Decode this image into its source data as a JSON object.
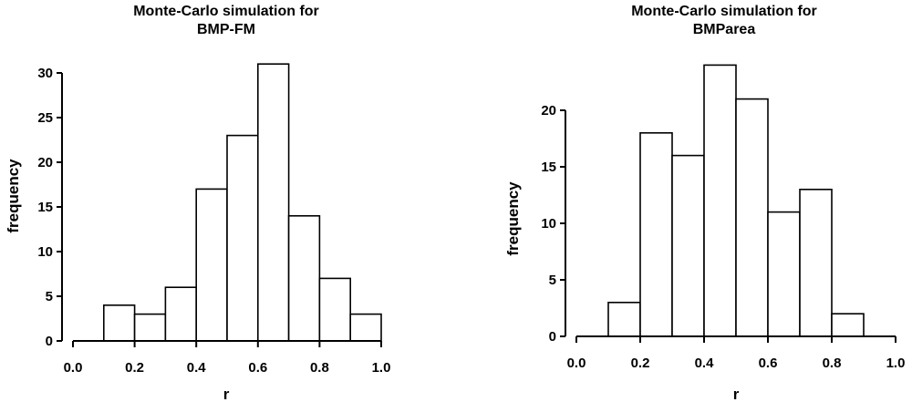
{
  "chart_data": [
    {
      "type": "bar",
      "title_line1": "Monte-Carlo simulation for",
      "title_line2": "BMP-FM",
      "xlabel": "r",
      "ylabel": "frequency",
      "xlim": [
        0.0,
        1.0
      ],
      "ylim": [
        0,
        32
      ],
      "xticks": [
        "0.0",
        "0.2",
        "0.4",
        "0.6",
        "0.8",
        "1.0"
      ],
      "yticks": [
        "0",
        "5",
        "10",
        "15",
        "20",
        "25",
        "30"
      ],
      "bin_width": 0.1,
      "bins_start": [
        0.1,
        0.2,
        0.3,
        0.4,
        0.5,
        0.6,
        0.7,
        0.8,
        0.9
      ],
      "values": [
        4,
        3,
        6,
        17,
        23,
        31,
        14,
        7,
        3
      ],
      "grid": false
    },
    {
      "type": "bar",
      "title_line1": "Monte-Carlo simulation for",
      "title_line2": "BMParea",
      "xlabel": "r",
      "ylabel": "frequency",
      "xlim": [
        0.0,
        1.0
      ],
      "ylim": [
        0,
        25
      ],
      "xticks": [
        "0.0",
        "0.2",
        "0.4",
        "0.6",
        "0.8",
        "1.0"
      ],
      "yticks": [
        "0",
        "5",
        "10",
        "15",
        "20"
      ],
      "bin_width": 0.1,
      "bins_start": [
        0.1,
        0.2,
        0.3,
        0.4,
        0.5,
        0.6,
        0.7,
        0.8
      ],
      "values": [
        3,
        18,
        16,
        24,
        21,
        11,
        13,
        2
      ],
      "grid": false
    }
  ]
}
